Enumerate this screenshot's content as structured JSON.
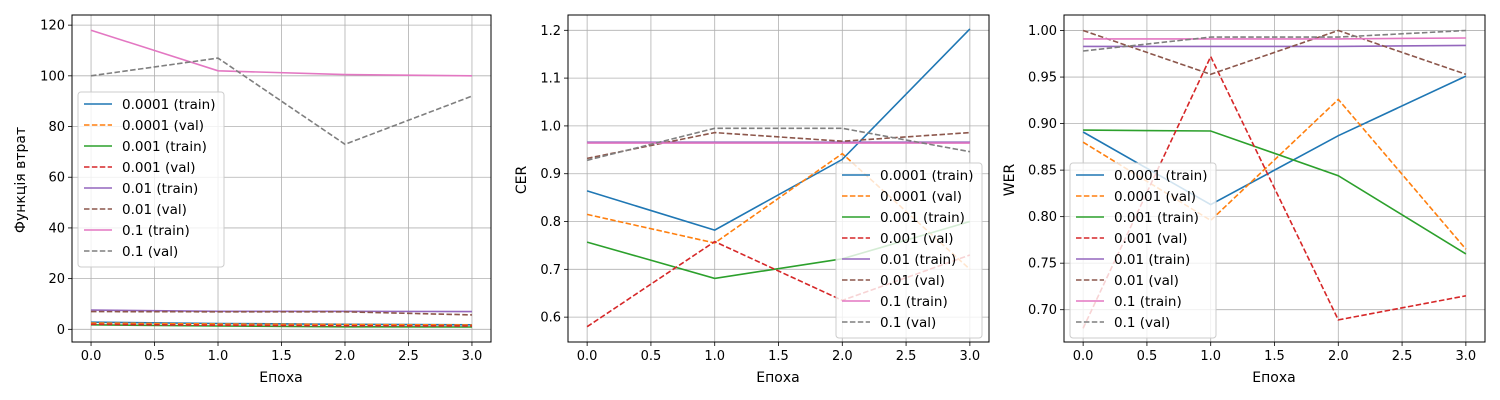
{
  "chart_data": [
    {
      "type": "line",
      "xlabel": "Епоха",
      "ylabel": "Функція втрат",
      "x": [
        0,
        1,
        2,
        3
      ],
      "xlim": [
        -0.15,
        3.15
      ],
      "ylim": [
        -5,
        124
      ],
      "xticks": [
        0.0,
        0.5,
        1.0,
        1.5,
        2.0,
        2.5,
        3.0
      ],
      "yticks": [
        0,
        20,
        40,
        60,
        80,
        100,
        120
      ],
      "ytick_decimals": 0,
      "grid": true,
      "legend_position": "center-left",
      "series": [
        {
          "name": "0.0001 (train)",
          "color": "#1f77b4",
          "dash": "solid",
          "values": [
            2.8,
            2.3,
            2.0,
            1.8
          ]
        },
        {
          "name": "0.0001 (val)",
          "color": "#ff7f0e",
          "dash": "dashed",
          "values": [
            2.5,
            2.1,
            1.9,
            1.7
          ]
        },
        {
          "name": "0.001 (train)",
          "color": "#2ca02c",
          "dash": "solid",
          "values": [
            1.8,
            1.3,
            1.0,
            0.9
          ]
        },
        {
          "name": "0.001 (val)",
          "color": "#d62728",
          "dash": "dashed",
          "values": [
            2.0,
            1.6,
            1.4,
            1.3
          ]
        },
        {
          "name": "0.01 (train)",
          "color": "#9467bd",
          "dash": "solid",
          "values": [
            7.6,
            7.1,
            7.1,
            7.0
          ]
        },
        {
          "name": "0.01 (val)",
          "color": "#8c564b",
          "dash": "dashed",
          "values": [
            7.0,
            6.9,
            6.9,
            5.7
          ]
        },
        {
          "name": "0.1 (train)",
          "color": "#e377c2",
          "dash": "solid",
          "values": [
            118,
            102,
            100.5,
            100
          ]
        },
        {
          "name": "0.1 (val)",
          "color": "#7f7f7f",
          "dash": "dashed",
          "values": [
            100,
            107,
            73,
            92
          ]
        }
      ]
    },
    {
      "type": "line",
      "xlabel": "Епоха",
      "ylabel": "CER",
      "x": [
        0,
        1,
        2,
        3
      ],
      "xlim": [
        -0.15,
        3.15
      ],
      "ylim": [
        0.548,
        1.232
      ],
      "xticks": [
        0.0,
        0.5,
        1.0,
        1.5,
        2.0,
        2.5,
        3.0
      ],
      "yticks": [
        0.6,
        0.7,
        0.8,
        0.9,
        1.0,
        1.1,
        1.2
      ],
      "ytick_decimals": 1,
      "grid": true,
      "legend_position": "lower-right",
      "series": [
        {
          "name": "0.0001 (train)",
          "color": "#1f77b4",
          "dash": "solid",
          "values": [
            0.864,
            0.782,
            0.93,
            1.203
          ]
        },
        {
          "name": "0.0001 (val)",
          "color": "#ff7f0e",
          "dash": "dashed",
          "values": [
            0.815,
            0.755,
            0.942,
            0.7
          ]
        },
        {
          "name": "0.001 (train)",
          "color": "#2ca02c",
          "dash": "solid",
          "values": [
            0.757,
            0.681,
            0.722,
            0.8
          ]
        },
        {
          "name": "0.001 (val)",
          "color": "#d62728",
          "dash": "dashed",
          "values": [
            0.58,
            0.758,
            0.635,
            0.73
          ]
        },
        {
          "name": "0.01 (train)",
          "color": "#9467bd",
          "dash": "solid",
          "values": [
            0.966,
            0.966,
            0.966,
            0.966
          ]
        },
        {
          "name": "0.01 (val)",
          "color": "#8c564b",
          "dash": "dashed",
          "values": [
            0.932,
            0.986,
            0.968,
            0.986
          ]
        },
        {
          "name": "0.1 (train)",
          "color": "#e377c2",
          "dash": "solid",
          "values": [
            0.964,
            0.964,
            0.964,
            0.964
          ]
        },
        {
          "name": "0.1 (val)",
          "color": "#7f7f7f",
          "dash": "dashed",
          "values": [
            0.928,
            0.995,
            0.995,
            0.946
          ]
        }
      ]
    },
    {
      "type": "line",
      "xlabel": "Епоха",
      "ylabel": "WER",
      "x": [
        0,
        1,
        2,
        3
      ],
      "xlim": [
        -0.15,
        3.15
      ],
      "ylim": [
        0.6653,
        1.0167
      ],
      "xticks": [
        0.0,
        0.5,
        1.0,
        1.5,
        2.0,
        2.5,
        3.0
      ],
      "yticks": [
        0.7,
        0.75,
        0.8,
        0.85,
        0.9,
        0.95,
        1.0
      ],
      "ytick_decimals": 2,
      "grid": true,
      "legend_position": "lower-left",
      "series": [
        {
          "name": "0.0001 (train)",
          "color": "#1f77b4",
          "dash": "solid",
          "values": [
            0.891,
            0.813,
            0.887,
            0.951
          ]
        },
        {
          "name": "0.0001 (val)",
          "color": "#ff7f0e",
          "dash": "dashed",
          "values": [
            0.88,
            0.796,
            0.926,
            0.765
          ]
        },
        {
          "name": "0.001 (train)",
          "color": "#2ca02c",
          "dash": "solid",
          "values": [
            0.893,
            0.892,
            0.844,
            0.76
          ]
        },
        {
          "name": "0.001 (val)",
          "color": "#d62728",
          "dash": "dashed",
          "values": [
            0.68,
            0.972,
            0.689,
            0.715
          ]
        },
        {
          "name": "0.01 (train)",
          "color": "#9467bd",
          "dash": "solid",
          "values": [
            0.983,
            0.983,
            0.983,
            0.984
          ]
        },
        {
          "name": "0.01 (val)",
          "color": "#8c564b",
          "dash": "dashed",
          "values": [
            1.0,
            0.953,
            1.0,
            0.953
          ]
        },
        {
          "name": "0.1 (train)",
          "color": "#e377c2",
          "dash": "solid",
          "values": [
            0.991,
            0.991,
            0.991,
            0.992
          ]
        },
        {
          "name": "0.1 (val)",
          "color": "#7f7f7f",
          "dash": "dashed",
          "values": [
            0.978,
            0.993,
            0.993,
            1.0
          ]
        }
      ]
    }
  ]
}
